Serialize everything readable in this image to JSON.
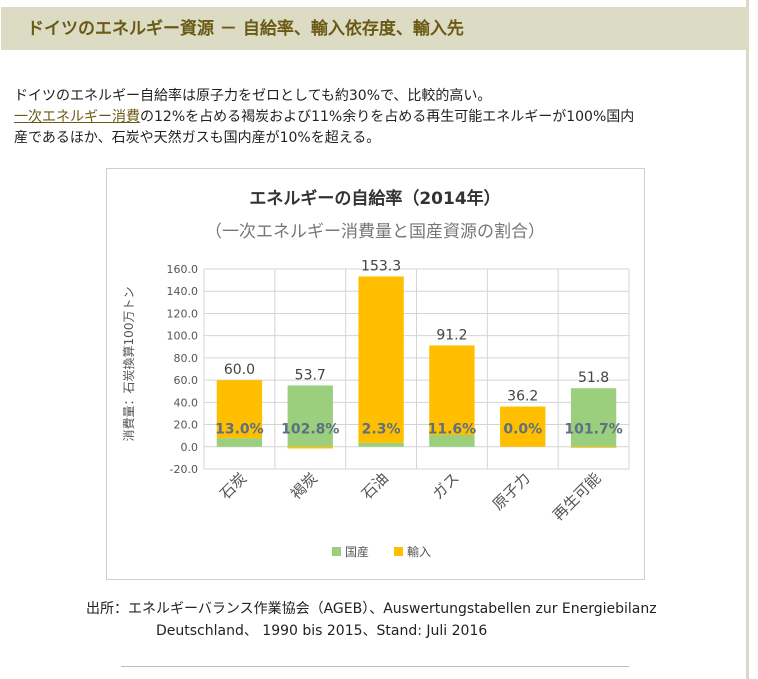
{
  "header": {
    "title": "ドイツのエネルギー資源 － 自給率、輸入依存度、輸入先"
  },
  "intro": {
    "line1": "ドイツのエネルギー自給率は原子力をゼロとしても約30%で、比較的高い。",
    "link_text": "一次エネルギー消費",
    "line2_rest": "の12%を占める褐炭および11%余りを占める再生可能エネルギーが100%国内",
    "line3": "産であるほか、石炭や天然ガスも国内産が10%を超える。"
  },
  "source": {
    "line1": "出所：エネルギーバランス作業協会（AGEB）、Auswertungstabellen zur Energiebilanz",
    "line2": "Deutschland、  1990 bis 2015、Stand: Juli 2016"
  },
  "colors": {
    "domestic": "#9bcf7e",
    "import": "#ffbf00",
    "header_bg": "#dcdcc4",
    "header_text": "#6b5a15"
  },
  "chart_data": {
    "type": "bar",
    "stacked": true,
    "title": "エネルギーの自給率（2014年）",
    "subtitle": "（一次エネルギー消費量と国産資源の割合）",
    "ylabel": "消費量：石炭換算100万トン",
    "ylim": [
      -20,
      160
    ],
    "yticks": [
      "-20.0",
      "0.0",
      "20.0",
      "40.0",
      "60.0",
      "80.0",
      "100.0",
      "120.0",
      "140.0",
      "160.0"
    ],
    "grid": true,
    "legend_position": "bottom",
    "categories": [
      "石炭",
      "褐炭",
      "石油",
      "ガス",
      "原子力",
      "再生可能"
    ],
    "series": [
      {
        "name": "国産",
        "color": "#9bcf7e",
        "values": [
          7.8,
          55.2,
          3.5,
          10.6,
          0,
          52.7
        ]
      },
      {
        "name": "輸入",
        "color": "#ffbf00",
        "values": [
          52.2,
          -1.5,
          149.8,
          80.6,
          36.2,
          -0.9
        ]
      }
    ],
    "total_labels": [
      "60.0",
      "53.7",
      "153.3",
      "91.2",
      "36.2",
      "51.8"
    ],
    "share_labels": [
      "13.0%",
      "102.8%",
      "2.3%",
      "11.6%",
      "0.0%",
      "101.7%"
    ]
  }
}
